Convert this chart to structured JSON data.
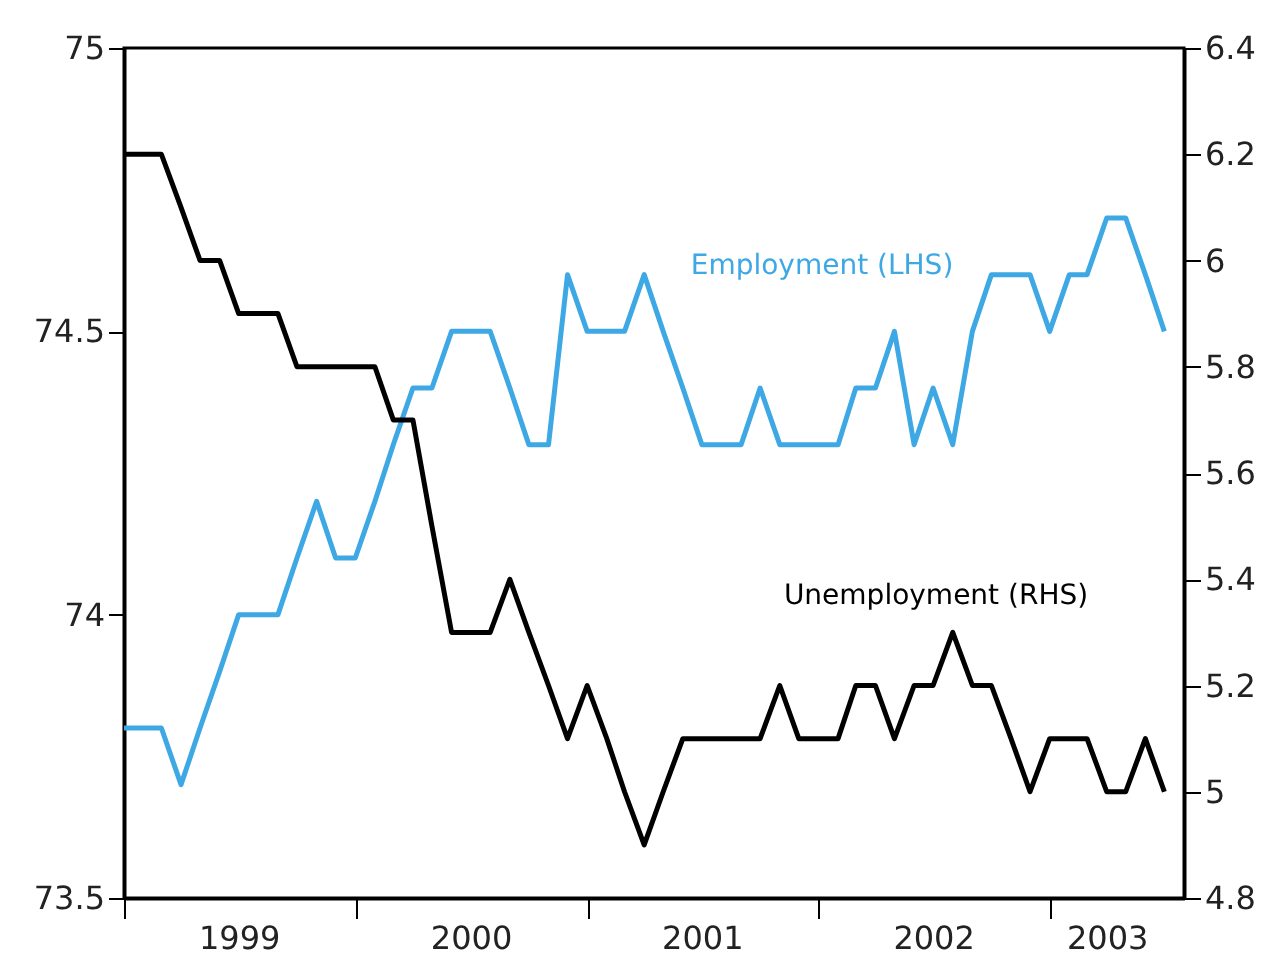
{
  "chart_data": {
    "type": "line",
    "x": [
      "1999-01",
      "1999-02",
      "1999-03",
      "1999-04",
      "1999-05",
      "1999-06",
      "1999-07",
      "1999-08",
      "1999-09",
      "1999-10",
      "1999-11",
      "1999-12",
      "2000-01",
      "2000-02",
      "2000-03",
      "2000-04",
      "2000-05",
      "2000-06",
      "2000-07",
      "2000-08",
      "2000-09",
      "2000-10",
      "2000-11",
      "2000-12",
      "2001-01",
      "2001-02",
      "2001-03",
      "2001-04",
      "2001-05",
      "2001-06",
      "2001-07",
      "2001-08",
      "2001-09",
      "2001-10",
      "2001-11",
      "2001-12",
      "2002-01",
      "2002-02",
      "2002-03",
      "2002-04",
      "2002-05",
      "2002-06",
      "2002-07",
      "2002-08",
      "2002-09",
      "2002-10",
      "2002-11",
      "2002-12",
      "2003-01",
      "2003-02",
      "2003-03",
      "2003-04",
      "2003-05",
      "2003-06",
      "2003-07"
    ],
    "series": [
      {
        "name": "Employment (LHS)",
        "color": "#3ea8e5",
        "values": [
          73.8,
          73.8,
          73.8,
          73.7,
          73.8,
          73.9,
          74.0,
          74.0,
          74.0,
          74.1,
          74.2,
          74.1,
          74.1,
          74.2,
          74.3,
          74.4,
          74.4,
          74.5,
          74.5,
          74.5,
          74.4,
          74.3,
          74.3,
          74.6,
          74.5,
          74.5,
          74.5,
          74.6,
          74.5,
          74.4,
          74.3,
          74.3,
          74.3,
          74.4,
          74.3,
          74.3,
          74.3,
          74.3,
          74.4,
          74.4,
          74.5,
          74.3,
          74.4,
          74.3,
          74.5,
          74.6,
          74.6,
          74.6,
          74.5,
          74.6,
          74.6,
          74.7,
          74.7,
          74.6,
          74.5
        ]
      },
      {
        "name": "Unemployment (RHS)",
        "color": "#000000",
        "axis": "y2",
        "values": [
          6.2,
          6.2,
          6.2,
          6.1,
          6.0,
          6.0,
          5.9,
          5.9,
          5.9,
          5.8,
          5.8,
          5.8,
          5.8,
          5.8,
          5.7,
          5.7,
          5.5,
          5.3,
          5.3,
          5.3,
          5.4,
          5.3,
          5.2,
          5.1,
          5.2,
          5.1,
          5.0,
          4.9,
          5.0,
          5.1,
          5.1,
          5.1,
          5.1,
          5.1,
          5.2,
          5.1,
          5.1,
          5.1,
          5.2,
          5.2,
          5.1,
          5.2,
          5.2,
          5.3,
          5.2,
          5.2,
          5.1,
          5.0,
          5.1,
          5.1,
          5.1,
          5.0,
          5.0,
          5.1,
          5.0
        ]
      }
    ],
    "xlim": [
      "1999-01",
      "2003-08"
    ],
    "xticks": [
      {
        "value": "1999-01",
        "label": null
      },
      {
        "value": "1999-07",
        "label": "1999"
      },
      {
        "value": "2000-01",
        "label": null
      },
      {
        "value": "2000-07",
        "label": "2000"
      },
      {
        "value": "2001-01",
        "label": null
      },
      {
        "value": "2001-07",
        "label": "2001"
      },
      {
        "value": "2002-01",
        "label": null
      },
      {
        "value": "2002-07",
        "label": "2002"
      },
      {
        "value": "2003-01",
        "label": null
      },
      {
        "value": "2003-04",
        "label": "2003"
      }
    ],
    "ylim": [
      73.5,
      75
    ],
    "yticks": [
      73.5,
      74,
      74.5,
      75
    ],
    "y2lim": [
      4.8,
      6.4
    ],
    "y2ticks": [
      4.8,
      5,
      5.2,
      5.4,
      5.6,
      5.8,
      6,
      6.2,
      6.4
    ],
    "grid": false,
    "marker": "none",
    "line_style": "solid"
  }
}
